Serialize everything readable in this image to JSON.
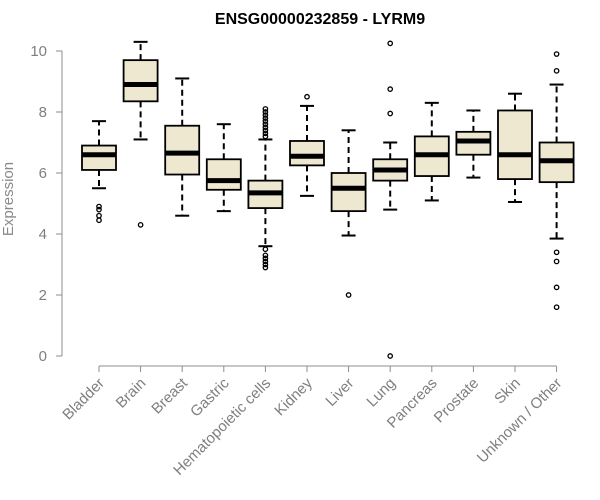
{
  "chart_data": {
    "type": "boxplot",
    "title": "ENSG00000232859 - LYRM9",
    "xlabel": "",
    "ylabel": "Expression",
    "ylim": [
      0,
      10
    ],
    "yticks": [
      0,
      2,
      4,
      6,
      8,
      10
    ],
    "grid": false,
    "colors": {
      "box_fill": "#EEE8D0",
      "box_stroke": "#000000",
      "axis": "#8c8c8c",
      "tick_label": "#7f7f7f"
    },
    "categories": [
      "Bladder",
      "Brain",
      "Breast",
      "Gastric",
      "Hematopoietic cells",
      "Kidney",
      "Liver",
      "Lung",
      "Pancreas",
      "Prostate",
      "Skin",
      "Unknown / Other"
    ],
    "boxes": [
      {
        "category": "Bladder",
        "whisker_low": 5.5,
        "q1": 6.1,
        "median": 6.6,
        "q3": 6.9,
        "whisker_high": 7.7,
        "outliers": [
          4.9,
          4.8,
          4.6,
          4.45
        ]
      },
      {
        "category": "Brain",
        "whisker_low": 7.1,
        "q1": 8.35,
        "median": 8.9,
        "q3": 9.7,
        "whisker_high": 10.3,
        "outliers": [
          4.3
        ]
      },
      {
        "category": "Breast",
        "whisker_low": 4.6,
        "q1": 5.95,
        "median": 6.65,
        "q3": 7.55,
        "whisker_high": 9.1,
        "outliers": []
      },
      {
        "category": "Gastric",
        "whisker_low": 4.75,
        "q1": 5.45,
        "median": 5.75,
        "q3": 6.45,
        "whisker_high": 7.6,
        "outliers": []
      },
      {
        "category": "Hematopoietic cells",
        "whisker_low": 3.6,
        "q1": 4.85,
        "median": 5.35,
        "q3": 5.75,
        "whisker_high": 7.1,
        "outliers": [
          8.1,
          8.0,
          7.9,
          7.8,
          7.7,
          7.6,
          7.5,
          7.4,
          7.3,
          7.2,
          3.5,
          3.3,
          3.2,
          3.1,
          3.0,
          2.9
        ]
      },
      {
        "category": "Kidney",
        "whisker_low": 5.25,
        "q1": 6.25,
        "median": 6.55,
        "q3": 7.05,
        "whisker_high": 8.2,
        "outliers": [
          8.5
        ]
      },
      {
        "category": "Liver",
        "whisker_low": 3.95,
        "q1": 4.75,
        "median": 5.5,
        "q3": 6.0,
        "whisker_high": 7.4,
        "outliers": [
          2.0
        ]
      },
      {
        "category": "Lung",
        "whisker_low": 4.8,
        "q1": 5.75,
        "median": 6.1,
        "q3": 6.45,
        "whisker_high": 7.0,
        "outliers": [
          10.25,
          8.75,
          7.95,
          0.0
        ]
      },
      {
        "category": "Pancreas",
        "whisker_low": 5.1,
        "q1": 5.9,
        "median": 6.6,
        "q3": 7.2,
        "whisker_high": 8.3,
        "outliers": []
      },
      {
        "category": "Prostate",
        "whisker_low": 5.85,
        "q1": 6.6,
        "median": 7.05,
        "q3": 7.35,
        "whisker_high": 8.05,
        "outliers": []
      },
      {
        "category": "Skin",
        "whisker_low": 5.05,
        "q1": 5.8,
        "median": 6.6,
        "q3": 8.05,
        "whisker_high": 8.6,
        "outliers": []
      },
      {
        "category": "Unknown / Other",
        "whisker_low": 3.85,
        "q1": 5.7,
        "median": 6.4,
        "q3": 7.0,
        "whisker_high": 8.9,
        "outliers": [
          9.9,
          9.35,
          3.4,
          3.1,
          2.25,
          1.6
        ]
      }
    ]
  }
}
